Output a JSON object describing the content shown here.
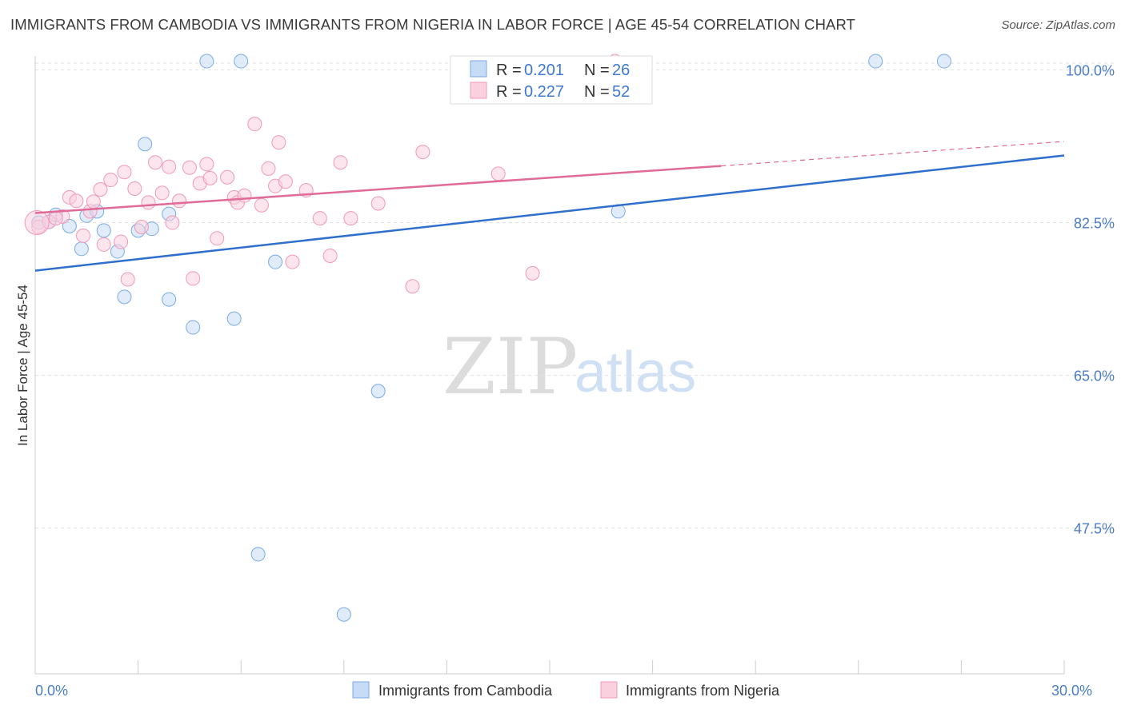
{
  "title": "IMMIGRANTS FROM CAMBODIA VS IMMIGRANTS FROM NIGERIA IN LABOR FORCE | AGE 45-54 CORRELATION CHART",
  "source": "Source: ZipAtlas.com",
  "watermark": {
    "zip": "ZIP",
    "atlas": "atlas"
  },
  "chart_data": {
    "type": "scatter",
    "title": "IMMIGRANTS FROM CAMBODIA VS IMMIGRANTS FROM NIGERIA IN LABOR FORCE | AGE 45-54 CORRELATION CHART",
    "xlabel": "",
    "ylabel": "In Labor Force | Age 45-54",
    "xlim": [
      0,
      30
    ],
    "ylim": [
      30.8,
      101.6
    ],
    "x_tick_labels": [
      {
        "value": 0,
        "label": "0.0%"
      },
      {
        "value": 30,
        "label": "30.0%"
      }
    ],
    "y_ticks": [
      {
        "value": 100.0,
        "label": "100.0%"
      },
      {
        "value": 82.5,
        "label": "82.5%"
      },
      {
        "value": 65.0,
        "label": "65.0%"
      },
      {
        "value": 47.5,
        "label": "47.5%"
      }
    ],
    "legend": {
      "position": "top-center",
      "entries": [
        {
          "r_label": "R = ",
          "r": "0.201",
          "n_label": "N = ",
          "n": "26"
        },
        {
          "r_label": "R = ",
          "r": "0.227",
          "n_label": "N = ",
          "n": "52"
        }
      ]
    },
    "series": [
      {
        "name": "Immigrants from Cambodia",
        "color": "#7aaae6",
        "fill": "#c6dcf6",
        "line_color": "#2f6fce",
        "trend": {
          "x_start": 0.0,
          "y_start": 77.0,
          "x_end": 30.0,
          "y_end": 90.2
        },
        "points": [
          [
            0.1,
            82.5
          ],
          [
            0.4,
            82.6
          ],
          [
            0.6,
            83.4
          ],
          [
            1.0,
            82.1
          ],
          [
            1.5,
            83.3
          ],
          [
            1.8,
            83.8
          ],
          [
            1.35,
            79.5
          ],
          [
            2.0,
            81.6
          ],
          [
            2.4,
            79.2
          ],
          [
            2.6,
            74.0
          ],
          [
            3.0,
            81.6
          ],
          [
            3.2,
            91.5
          ],
          [
            3.4,
            81.8
          ],
          [
            3.9,
            83.5
          ],
          [
            3.9,
            73.7
          ],
          [
            4.6,
            70.5
          ],
          [
            5.0,
            101.0
          ],
          [
            5.8,
            71.5
          ],
          [
            6.0,
            101.0
          ],
          [
            7.0,
            78.0
          ],
          [
            10.0,
            63.2
          ],
          [
            6.5,
            44.5
          ],
          [
            9.0,
            37.6
          ],
          [
            17.0,
            83.8
          ],
          [
            24.5,
            101.0
          ],
          [
            26.5,
            101.0
          ]
        ]
      },
      {
        "name": "Immigrants from Nigeria",
        "color": "#f098b8",
        "fill": "#fad0df",
        "line_color": "#e06a98",
        "trend": {
          "x_start": 0.0,
          "y_start": 83.6,
          "x_end": 20.0,
          "y_end": 89.0,
          "dash_x_end": 30.0,
          "dash_y_end": 91.8
        },
        "points": [
          [
            0.1,
            82.0
          ],
          [
            0.4,
            82.6
          ],
          [
            0.8,
            83.2
          ],
          [
            1.0,
            85.4
          ],
          [
            1.2,
            85.0
          ],
          [
            1.4,
            81.0
          ],
          [
            1.6,
            83.8
          ],
          [
            1.7,
            84.9
          ],
          [
            1.9,
            86.3
          ],
          [
            2.0,
            80.0
          ],
          [
            2.2,
            87.4
          ],
          [
            2.5,
            80.3
          ],
          [
            2.6,
            88.3
          ],
          [
            2.7,
            76.0
          ],
          [
            2.9,
            86.4
          ],
          [
            3.1,
            82.0
          ],
          [
            3.3,
            84.8
          ],
          [
            3.5,
            89.4
          ],
          [
            3.7,
            85.9
          ],
          [
            3.9,
            88.9
          ],
          [
            4.0,
            82.5
          ],
          [
            4.2,
            85.0
          ],
          [
            4.5,
            88.8
          ],
          [
            4.6,
            76.1
          ],
          [
            4.8,
            87.0
          ],
          [
            5.0,
            89.2
          ],
          [
            5.1,
            87.6
          ],
          [
            5.3,
            80.7
          ],
          [
            5.6,
            87.7
          ],
          [
            5.8,
            85.4
          ],
          [
            5.9,
            84.8
          ],
          [
            6.1,
            85.6
          ],
          [
            6.4,
            93.8
          ],
          [
            6.6,
            84.5
          ],
          [
            6.8,
            88.7
          ],
          [
            7.0,
            86.7
          ],
          [
            7.1,
            91.7
          ],
          [
            7.3,
            87.2
          ],
          [
            7.5,
            78.0
          ],
          [
            7.9,
            86.2
          ],
          [
            8.3,
            83.0
          ],
          [
            8.6,
            78.7
          ],
          [
            8.9,
            89.4
          ],
          [
            9.2,
            83.0
          ],
          [
            10.0,
            84.7
          ],
          [
            11.0,
            75.2
          ],
          [
            11.3,
            90.6
          ],
          [
            13.5,
            88.1
          ],
          [
            14.5,
            76.7
          ],
          [
            16.9,
            101.0
          ],
          [
            0.05,
            82.5
          ],
          [
            0.6,
            83.0
          ]
        ]
      }
    ]
  }
}
